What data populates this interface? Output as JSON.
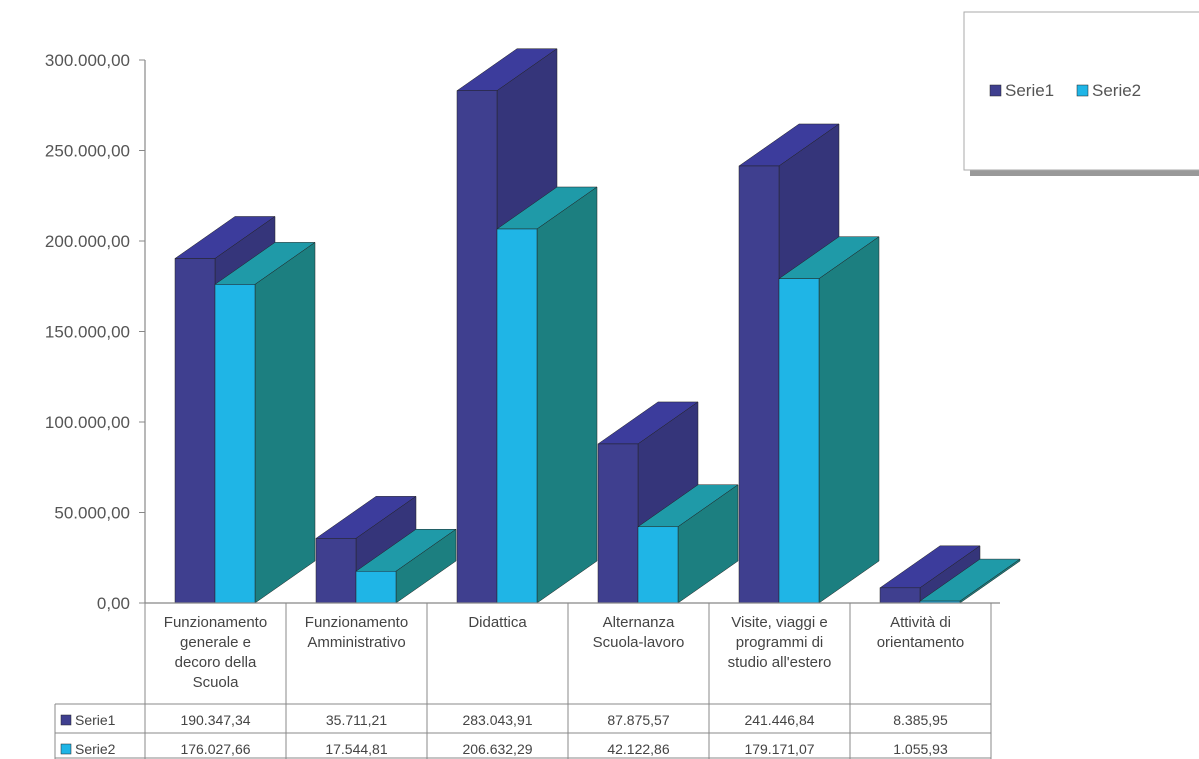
{
  "chart_data": {
    "type": "bar",
    "categories": [
      [
        "Funzionamento",
        "generale e",
        "decoro della",
        "Scuola"
      ],
      [
        "Funzionamento",
        "Amministrativo"
      ],
      [
        "Didattica"
      ],
      [
        "Alternanza",
        "Scuola-lavoro"
      ],
      [
        "Visite, viaggi e",
        "programmi di",
        "studio all'estero"
      ],
      [
        "Attività di",
        "orientamento"
      ]
    ],
    "series": [
      {
        "name": "Serie1",
        "values": [
          190347.34,
          35711.21,
          283043.91,
          87875.57,
          241446.84,
          8385.95
        ],
        "labels": [
          "190.347,34",
          "35.711,21",
          "283.043,91",
          "87.875,57",
          "241.446,84",
          "8.385,95"
        ],
        "colors": {
          "front": "#3f3f8f",
          "side": "#35357a",
          "top": "#3c3c9c"
        }
      },
      {
        "name": "Serie2",
        "values": [
          176027.66,
          17544.81,
          206632.29,
          42122.86,
          179171.07,
          1055.93
        ],
        "labels": [
          "176.027,66",
          "17.544,81",
          "206.632,29",
          "42.122,86",
          "179.171,07",
          "1.055,93"
        ],
        "colors": {
          "front": "#1fb5e6",
          "side": "#1c7f80",
          "top": "#1f9aa8"
        }
      }
    ],
    "yticks": [
      0,
      50000,
      100000,
      150000,
      200000,
      250000,
      300000
    ],
    "ytick_labels": [
      "0,00",
      "50.000,00",
      "100.000,00",
      "150.000,00",
      "200.000,00",
      "250.000,00",
      "300.000,00"
    ],
    "ylim": [
      0,
      300000
    ],
    "legend_position": "top-right",
    "data_table": true
  }
}
